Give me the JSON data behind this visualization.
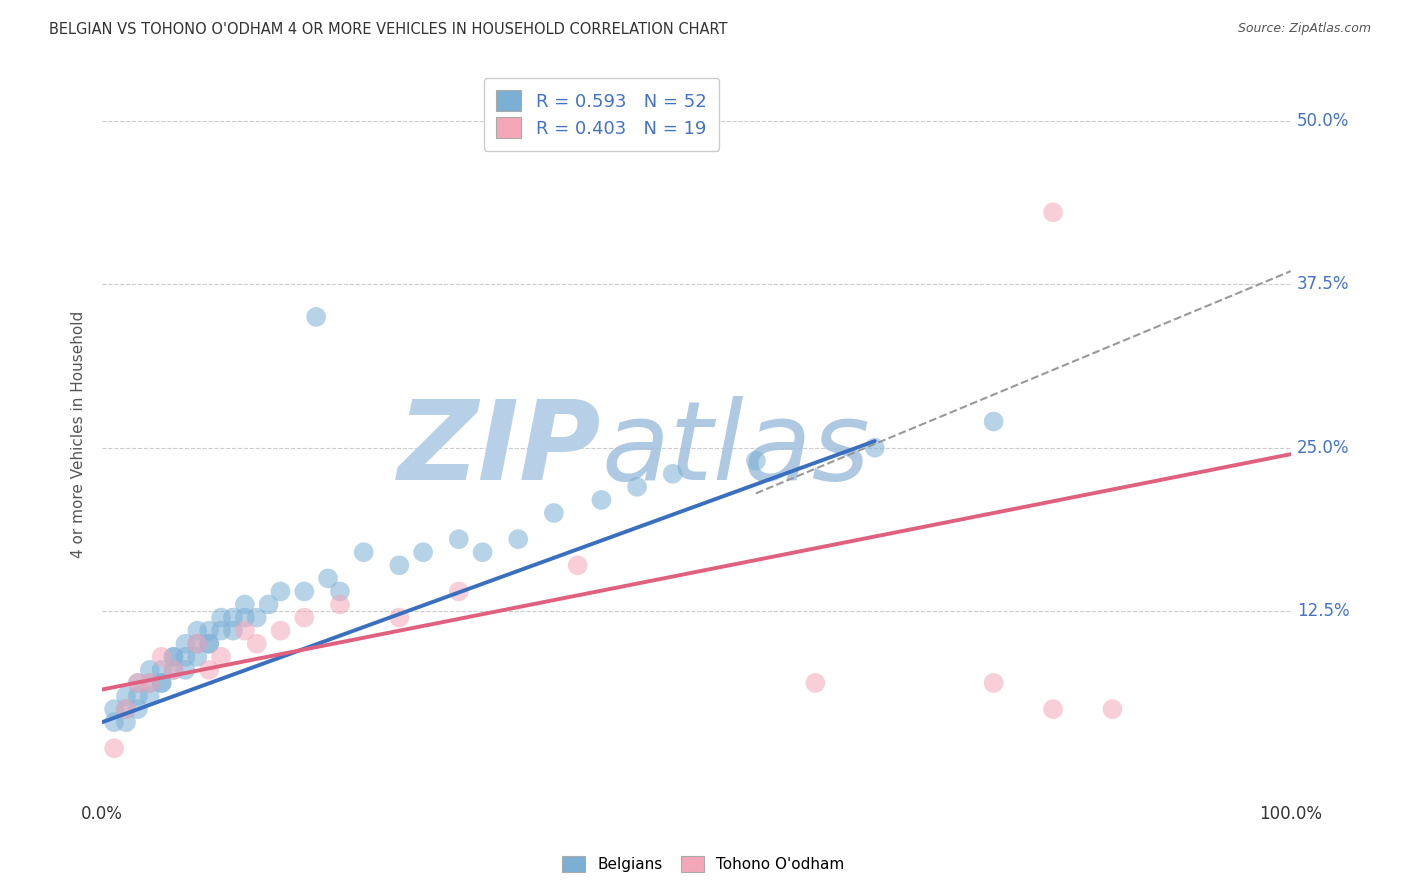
{
  "title": "BELGIAN VS TOHONO O'ODHAM 4 OR MORE VEHICLES IN HOUSEHOLD CORRELATION CHART",
  "source": "Source: ZipAtlas.com",
  "ylabel": "4 or more Vehicles in Household",
  "xlim": [
    0.0,
    100.0
  ],
  "ylim": [
    -2.0,
    54.0
  ],
  "xtick_labels": [
    "0.0%",
    "100.0%"
  ],
  "xtick_vals": [
    0,
    100
  ],
  "ytick_labels": [
    "12.5%",
    "25.0%",
    "37.5%",
    "50.0%"
  ],
  "ytick_vals": [
    12.5,
    25.0,
    37.5,
    50.0
  ],
  "belgian_color": "#7bafd4",
  "tohono_color": "#f4a7b9",
  "belgian_line_color": "#3a6fbf",
  "tohono_line_color": "#e06080",
  "belgian_R": 0.593,
  "belgian_N": 52,
  "tohono_R": 0.403,
  "tohono_N": 19,
  "watermark_zip": "ZIP",
  "watermark_atlas": "atlas",
  "watermark_color": "#c8d8ea",
  "belgian_points_x": [
    1,
    1,
    2,
    2,
    2,
    3,
    3,
    3,
    4,
    4,
    4,
    5,
    5,
    5,
    6,
    6,
    6,
    7,
    7,
    7,
    8,
    8,
    8,
    9,
    9,
    9,
    10,
    10,
    11,
    11,
    12,
    12,
    13,
    14,
    15,
    17,
    19,
    20,
    22,
    25,
    27,
    30,
    32,
    35,
    38,
    42,
    45,
    55,
    65,
    75,
    48,
    18
  ],
  "belgian_points_y": [
    4,
    5,
    4,
    6,
    5,
    5,
    7,
    6,
    6,
    7,
    8,
    7,
    8,
    7,
    9,
    8,
    9,
    8,
    9,
    10,
    9,
    10,
    11,
    10,
    11,
    10,
    11,
    12,
    11,
    12,
    12,
    13,
    12,
    13,
    14,
    14,
    15,
    14,
    17,
    16,
    17,
    18,
    17,
    18,
    20,
    21,
    22,
    24,
    25,
    27,
    23,
    35
  ],
  "tohono_points_x": [
    1,
    2,
    3,
    4,
    5,
    6,
    8,
    9,
    10,
    12,
    13,
    15,
    17,
    20,
    25,
    30,
    40,
    60,
    80
  ],
  "tohono_points_y": [
    2,
    5,
    7,
    7,
    9,
    8,
    10,
    8,
    9,
    11,
    10,
    11,
    12,
    13,
    12,
    14,
    16,
    7,
    5
  ],
  "tohono_outlier1_x": 75,
  "tohono_outlier1_y": 7,
  "tohono_outlier2_x": 85,
  "tohono_outlier2_y": 5,
  "tohono_high_x": 80,
  "tohono_high_y": 43,
  "belgian_line_x1": 0,
  "belgian_line_y1": 4.0,
  "belgian_line_x2": 65,
  "belgian_line_y2": 25.5,
  "tohono_line_x1": 0,
  "tohono_line_y1": 6.5,
  "tohono_line_x2": 100,
  "tohono_line_y2": 24.5,
  "dash_line_x1": 55,
  "dash_line_y1": 21.5,
  "dash_line_x2": 100,
  "dash_line_y2": 38.5,
  "background_color": "#ffffff",
  "grid_color": "#cccccc",
  "grid_linestyle": "--"
}
